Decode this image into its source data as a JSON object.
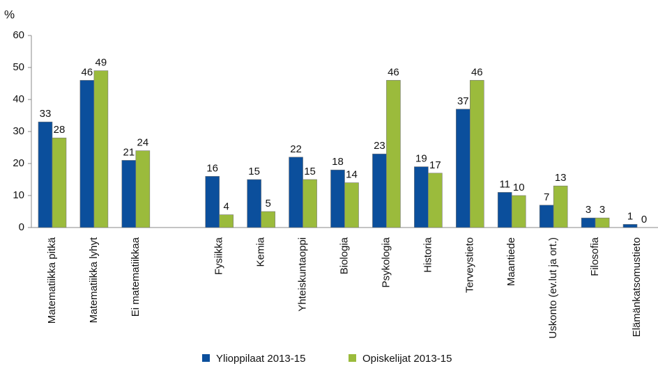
{
  "chart_data": {
    "type": "bar",
    "y_unit": "%",
    "categories": [
      "Matematiikka pitkä",
      "Matematiikka lyhyt",
      "Ei matematiikkaa",
      null,
      "Fysiikka",
      "Kemia",
      "Yhteiskuntaoppi",
      "Biologia",
      "Psykologia",
      "Historia",
      "Terveystieto",
      "Maantiede",
      "Uskonto (ev.lut ja ort.)",
      "Filosofia",
      "Elämänkatsomustieto"
    ],
    "series": [
      {
        "name": "Ylioppilaat 2013-15",
        "color": "#0b4f9c",
        "values": [
          33,
          46,
          21,
          null,
          16,
          15,
          22,
          18,
          23,
          19,
          37,
          11,
          7,
          3,
          1
        ]
      },
      {
        "name": "Opiskelijat 2013-15",
        "color": "#9bbb3c",
        "values": [
          28,
          49,
          24,
          null,
          4,
          5,
          15,
          14,
          46,
          17,
          46,
          10,
          13,
          3,
          0
        ]
      }
    ],
    "ylim": [
      0,
      60
    ],
    "yticks": [
      0,
      10,
      20,
      30,
      40,
      50,
      60
    ],
    "grid": false,
    "legend": "bottom"
  }
}
